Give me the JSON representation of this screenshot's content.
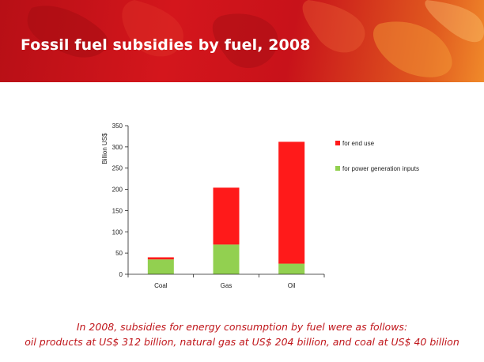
{
  "slide": {
    "title": "Fossil fuel subsidies by fuel, 2008",
    "caption_lines": [
      "In 2008, subsidies for energy consumption by fuel were as follows:",
      "oil products at US$ 312 billion, natural gas at US$ 204 billion, and coal at US$ 40 billion"
    ]
  },
  "colors": {
    "end_use": "#ff1a1a",
    "power_generation": "#92d050",
    "banner": "#c8121a",
    "caption": "#c0161b"
  },
  "chart_data": {
    "type": "bar",
    "stacked": true,
    "title": "",
    "xlabel": "",
    "ylabel": "Billion US$",
    "ylim": [
      0,
      350
    ],
    "yticks": [
      0,
      50,
      100,
      150,
      200,
      250,
      300,
      350
    ],
    "categories": [
      "Coal",
      "Gas",
      "Oil"
    ],
    "series": [
      {
        "name": "for power generation inputs",
        "values": [
          35,
          70,
          25
        ]
      },
      {
        "name": "for end use",
        "values": [
          5,
          134,
          287
        ]
      }
    ],
    "legend_order": [
      "for end use",
      "for power generation inputs"
    ],
    "legend_position": "right",
    "grid": false
  }
}
